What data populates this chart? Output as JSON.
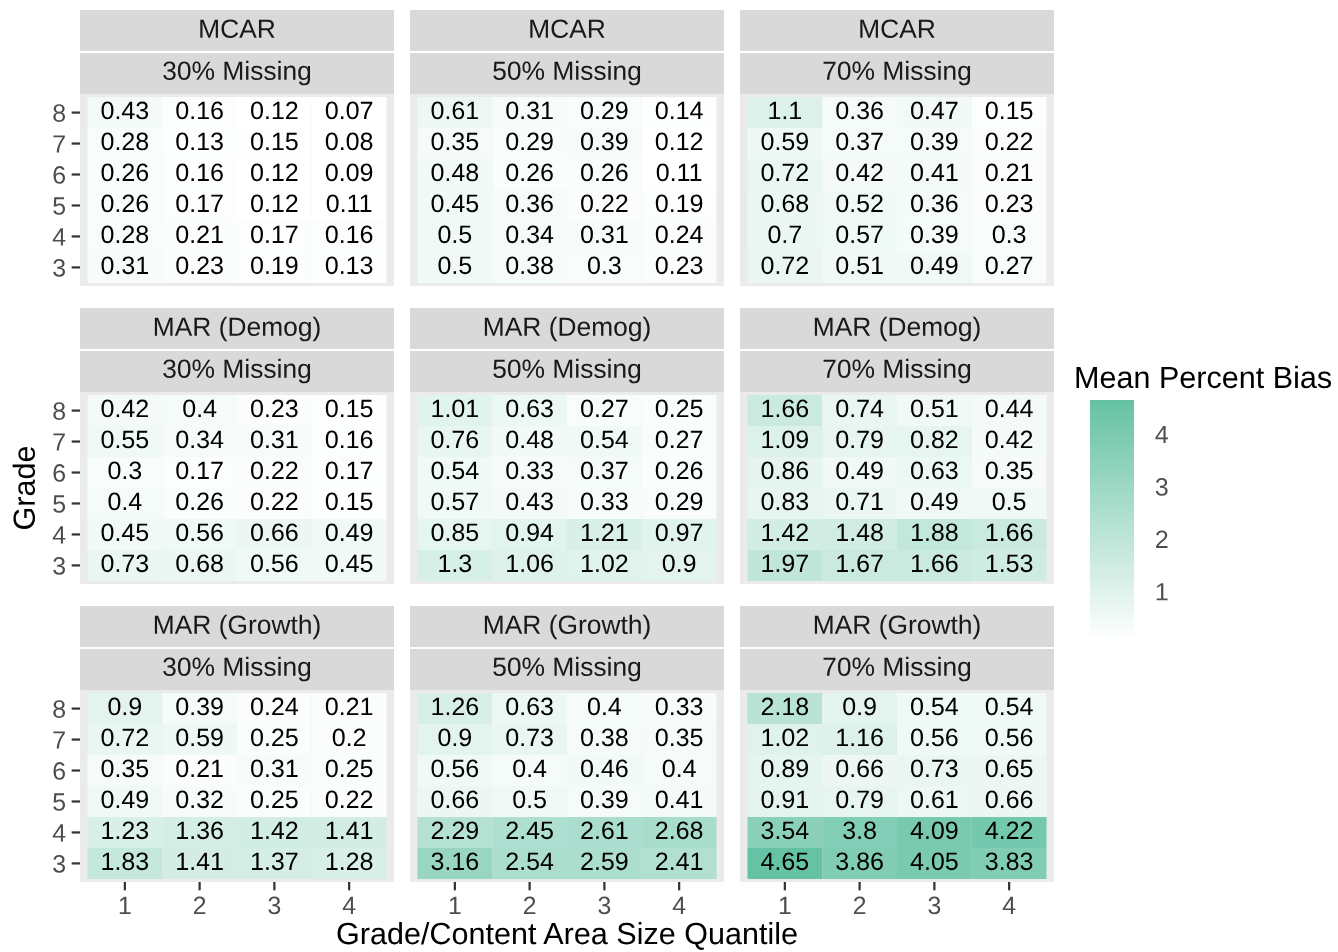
{
  "chart_data": [
    {
      "type": "heatmap",
      "title": "MCAR",
      "subtitle": "30% Missing",
      "data_labels": true,
      "categories": [
        "1",
        "2",
        "3",
        "4"
      ],
      "y_categories": [
        "8",
        "7",
        "6",
        "5",
        "4",
        "3"
      ],
      "tick_labels": "y",
      "cells": [
        [
          0.43,
          0.16,
          0.12,
          0.07
        ],
        [
          0.28,
          0.13,
          0.15,
          0.08
        ],
        [
          0.26,
          0.16,
          0.12,
          0.09
        ],
        [
          0.26,
          0.17,
          0.12,
          0.11
        ],
        [
          0.28,
          0.21,
          0.17,
          0.16
        ],
        [
          0.31,
          0.23,
          0.19,
          0.13
        ]
      ]
    },
    {
      "type": "heatmap",
      "title": "MCAR",
      "subtitle": "50% Missing",
      "data_labels": true,
      "categories": [
        "1",
        "2",
        "3",
        "4"
      ],
      "y_categories": [
        "8",
        "7",
        "6",
        "5",
        "4",
        "3"
      ],
      "tick_labels": false,
      "cells": [
        [
          0.61,
          0.31,
          0.29,
          0.14
        ],
        [
          0.35,
          0.29,
          0.39,
          0.12
        ],
        [
          0.48,
          0.26,
          0.26,
          0.11
        ],
        [
          0.45,
          0.36,
          0.22,
          0.19
        ],
        [
          0.5,
          0.34,
          0.31,
          0.24
        ],
        [
          0.5,
          0.38,
          0.3,
          0.23
        ]
      ]
    },
    {
      "type": "heatmap",
      "title": "MCAR",
      "subtitle": "70% Missing",
      "data_labels": true,
      "categories": [
        "1",
        "2",
        "3",
        "4"
      ],
      "y_categories": [
        "8",
        "7",
        "6",
        "5",
        "4",
        "3"
      ],
      "tick_labels": false,
      "cells": [
        [
          1.1,
          0.36,
          0.47,
          0.15
        ],
        [
          0.59,
          0.37,
          0.39,
          0.22
        ],
        [
          0.72,
          0.42,
          0.41,
          0.21
        ],
        [
          0.68,
          0.52,
          0.36,
          0.23
        ],
        [
          0.7,
          0.57,
          0.39,
          0.3
        ],
        [
          0.72,
          0.51,
          0.49,
          0.27
        ]
      ]
    },
    {
      "type": "heatmap",
      "title": "MAR (Demog)",
      "subtitle": "30% Missing",
      "ylabel": "Grade",
      "data_labels": true,
      "categories": [
        "1",
        "2",
        "3",
        "4"
      ],
      "y_categories": [
        "8",
        "7",
        "6",
        "5",
        "4",
        "3"
      ],
      "tick_labels": "y",
      "cells": [
        [
          0.42,
          0.4,
          0.23,
          0.15
        ],
        [
          0.55,
          0.34,
          0.31,
          0.16
        ],
        [
          0.3,
          0.17,
          0.22,
          0.17
        ],
        [
          0.4,
          0.26,
          0.22,
          0.15
        ],
        [
          0.45,
          0.56,
          0.66,
          0.49
        ],
        [
          0.73,
          0.68,
          0.56,
          0.45
        ]
      ]
    },
    {
      "type": "heatmap",
      "title": "MAR (Demog)",
      "subtitle": "50% Missing",
      "data_labels": true,
      "categories": [
        "1",
        "2",
        "3",
        "4"
      ],
      "y_categories": [
        "8",
        "7",
        "6",
        "5",
        "4",
        "3"
      ],
      "tick_labels": false,
      "cells": [
        [
          1.01,
          0.63,
          0.27,
          0.25
        ],
        [
          0.76,
          0.48,
          0.54,
          0.27
        ],
        [
          0.54,
          0.33,
          0.37,
          0.26
        ],
        [
          0.57,
          0.43,
          0.33,
          0.29
        ],
        [
          0.85,
          0.94,
          1.21,
          0.97
        ],
        [
          1.3,
          1.06,
          1.02,
          0.9
        ]
      ]
    },
    {
      "type": "heatmap",
      "title": "MAR (Demog)",
      "subtitle": "70% Missing",
      "categories": [
        "1",
        "2",
        "3",
        "4"
      ],
      "y_categories": [
        "8",
        "7",
        "6",
        "5",
        "4",
        "3"
      ],
      "clim": [
        0.07,
        4.65
      ],
      "tick_labels": false,
      "clabel": "Mean Percent Bias",
      "data_labels": true,
      "cticks": [
        1,
        2,
        3,
        4
      ],
      "cells": [
        [
          1.66,
          0.74,
          0.51,
          0.44
        ],
        [
          1.09,
          0.79,
          0.82,
          0.42
        ],
        [
          0.86,
          0.49,
          0.63,
          0.35
        ],
        [
          0.83,
          0.71,
          0.49,
          0.5
        ],
        [
          1.42,
          1.48,
          1.88,
          1.66
        ],
        [
          1.97,
          1.67,
          1.66,
          1.53
        ]
      ]
    },
    {
      "type": "heatmap",
      "title": "MAR (Growth)",
      "subtitle": "30% Missing",
      "data_labels": true,
      "categories": [
        "1",
        "2",
        "3",
        "4"
      ],
      "y_categories": [
        "8",
        "7",
        "6",
        "5",
        "4",
        "3"
      ],
      "cells": [
        [
          0.9,
          0.39,
          0.24,
          0.21
        ],
        [
          0.72,
          0.59,
          0.25,
          0.2
        ],
        [
          0.35,
          0.21,
          0.31,
          0.25
        ],
        [
          0.49,
          0.32,
          0.25,
          0.22
        ],
        [
          1.23,
          1.36,
          1.42,
          1.41
        ],
        [
          1.83,
          1.41,
          1.37,
          1.28
        ]
      ]
    },
    {
      "type": "heatmap",
      "title": "MAR (Growth)",
      "subtitle": "50% Missing",
      "xlabel": "Grade/Content Area Size Quantile",
      "data_labels": true,
      "categories": [
        "1",
        "2",
        "3",
        "4"
      ],
      "y_categories": [
        "8",
        "7",
        "6",
        "5",
        "4",
        "3"
      ],
      "tick_labels": "x",
      "cells": [
        [
          1.26,
          0.63,
          0.4,
          0.33
        ],
        [
          0.9,
          0.73,
          0.38,
          0.35
        ],
        [
          0.56,
          0.4,
          0.46,
          0.4
        ],
        [
          0.66,
          0.5,
          0.39,
          0.41
        ],
        [
          2.29,
          2.45,
          2.61,
          2.68
        ],
        [
          3.16,
          2.54,
          2.59,
          2.41
        ]
      ]
    },
    {
      "type": "heatmap",
      "title": "MAR (Growth)",
      "subtitle": "70% Missing",
      "data_labels": true,
      "categories": [
        "1",
        "2",
        "3",
        "4"
      ],
      "y_categories": [
        "8",
        "7",
        "6",
        "5",
        "4",
        "3"
      ],
      "tick_labels": "x",
      "cells": [
        [
          2.18,
          0.9,
          0.54,
          0.54
        ],
        [
          1.02,
          1.16,
          0.56,
          0.56
        ],
        [
          0.89,
          0.66,
          0.73,
          0.65
        ],
        [
          0.91,
          0.79,
          0.61,
          0.66
        ],
        [
          3.54,
          3.8,
          4.09,
          4.22
        ],
        [
          4.65,
          3.86,
          4.05,
          3.83
        ]
      ]
    }
  ]
}
